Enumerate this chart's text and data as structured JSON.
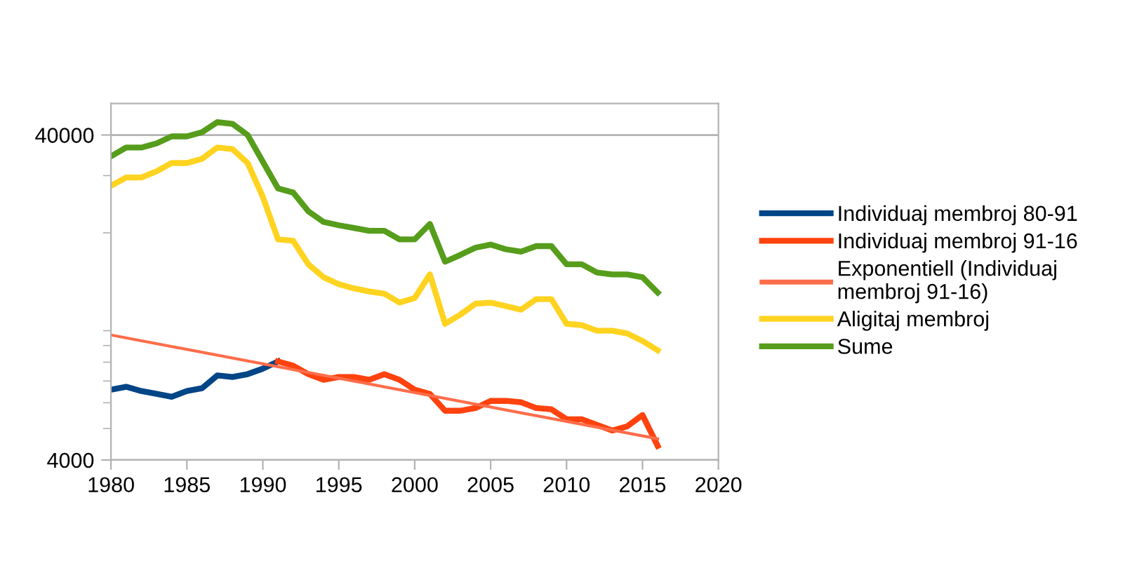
{
  "chart_data": {
    "type": "line",
    "x": [
      1980,
      1981,
      1982,
      1983,
      1984,
      1985,
      1986,
      1987,
      1988,
      1989,
      1990,
      1991,
      1992,
      1993,
      1994,
      1995,
      1996,
      1997,
      1998,
      1999,
      2000,
      2001,
      2002,
      2003,
      2004,
      2005,
      2006,
      2007,
      2008,
      2009,
      2010,
      2011,
      2012,
      2013,
      2014,
      2015,
      2016
    ],
    "series": [
      {
        "name": "Individuaj membroj 80-91",
        "color": "#004586",
        "x": [
          1980,
          1981,
          1982,
          1983,
          1984,
          1985,
          1986,
          1987,
          1988,
          1989,
          1990,
          1991
        ],
        "values": [
          6580,
          6720,
          6520,
          6390,
          6260,
          6520,
          6650,
          7280,
          7200,
          7350,
          7640,
          8040
        ]
      },
      {
        "name": "Individuaj membroj 91-16",
        "color": "#ff420e",
        "x": [
          1991,
          1992,
          1993,
          1994,
          1995,
          1996,
          1997,
          1998,
          1999,
          2000,
          2001,
          2002,
          2003,
          2004,
          2005,
          2006,
          2007,
          2008,
          2009,
          2010,
          2011,
          2012,
          2013,
          2014,
          2015,
          2016
        ],
        "values": [
          8040,
          7800,
          7350,
          7060,
          7200,
          7200,
          7060,
          7350,
          7060,
          6580,
          6390,
          5670,
          5670,
          5780,
          6080,
          6080,
          6020,
          5780,
          5730,
          5340,
          5340,
          5130,
          4930,
          5080,
          5500,
          4420
        ]
      },
      {
        "name": "Exponentiell (Individuaj membroj 91-16)",
        "color": "#ff6d4a",
        "x": [
          1980,
          2016
        ],
        "values": [
          9700,
          4650
        ]
      },
      {
        "name": "Aligitaj membroj",
        "color": "#ffd320",
        "values": [
          27900,
          29600,
          29600,
          30900,
          32800,
          32800,
          33800,
          36600,
          36200,
          32800,
          25800,
          19100,
          18900,
          16000,
          14600,
          13900,
          13500,
          13200,
          13000,
          12200,
          12600,
          14900,
          10500,
          11200,
          12100,
          12200,
          11900,
          11600,
          12500,
          12500,
          10500,
          10400,
          10000,
          10000,
          9800,
          9300,
          8700
        ]
      },
      {
        "name": "Sume",
        "color": "#579d1c",
        "values": [
          34400,
          36600,
          36600,
          37700,
          39600,
          39600,
          40800,
          43800,
          43300,
          40000,
          33100,
          27400,
          26600,
          23300,
          21600,
          21100,
          20700,
          20300,
          20300,
          19100,
          19100,
          21300,
          16300,
          17100,
          18000,
          18400,
          17800,
          17500,
          18200,
          18200,
          16000,
          16000,
          15100,
          14900,
          14900,
          14600,
          13100
        ]
      }
    ],
    "log": true,
    "ylim": [
      4000,
      50000
    ],
    "yticks": [
      4000,
      {
        "value": 5000,
        "label": null
      },
      {
        "value": 6000,
        "label": null
      },
      {
        "value": 7000,
        "label": null
      },
      {
        "value": 8000,
        "label": null
      },
      {
        "value": 9000,
        "label": null
      },
      {
        "value": 10000,
        "label": null
      },
      {
        "value": 20000,
        "label": null
      },
      {
        "value": 30000,
        "label": null
      },
      40000
    ],
    "xlim": [
      1980,
      2020
    ],
    "xticks": [
      1980,
      1985,
      1990,
      1995,
      2000,
      2005,
      2010,
      2015,
      2020
    ],
    "grid": "y",
    "legend": "right",
    "line_style": "solid",
    "marker": "none"
  }
}
